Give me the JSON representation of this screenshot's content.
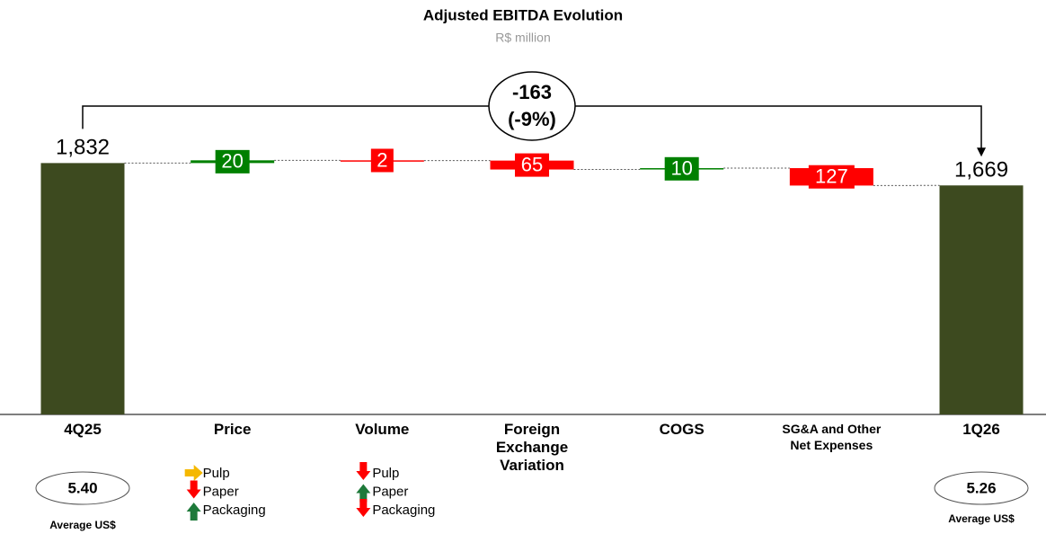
{
  "chart_data": {
    "type": "waterfall",
    "title": "Adjusted EBITDA Evolution",
    "subtitle": "R$ million",
    "categories": [
      "4Q25",
      "Price",
      "Volume",
      "Foreign Exchange Variation",
      "COGS",
      "SG&A and Other Net Expenses",
      "1Q26"
    ],
    "values": [
      1832,
      20,
      -2,
      -65,
      10,
      -127,
      1669
    ],
    "value_labels": [
      "1,832",
      "20",
      "2",
      "65",
      "10",
      "127",
      "1,669"
    ],
    "kinds": [
      "total",
      "delta",
      "delta",
      "delta",
      "delta",
      "delta",
      "total"
    ],
    "colors": {
      "total": "#3d4a1f",
      "up": "#008000",
      "down": "#ff0000"
    },
    "ylim": [
      0,
      1900
    ],
    "annotation": {
      "change": "-163",
      "percent": "(-9%)"
    },
    "average_usd": {
      "label": "Average US$",
      "start": "5.40",
      "end": "5.26"
    },
    "drivers": [
      {
        "category": 1,
        "items": [
          {
            "name": "Pulp",
            "trend": "flat"
          },
          {
            "name": "Paper",
            "trend": "down"
          },
          {
            "name": "Packaging",
            "trend": "up"
          }
        ]
      },
      {
        "category": 2,
        "items": [
          {
            "name": "Pulp",
            "trend": "down"
          },
          {
            "name": "Paper",
            "trend": "up"
          },
          {
            "name": "Packaging",
            "trend": "down"
          }
        ]
      }
    ]
  }
}
